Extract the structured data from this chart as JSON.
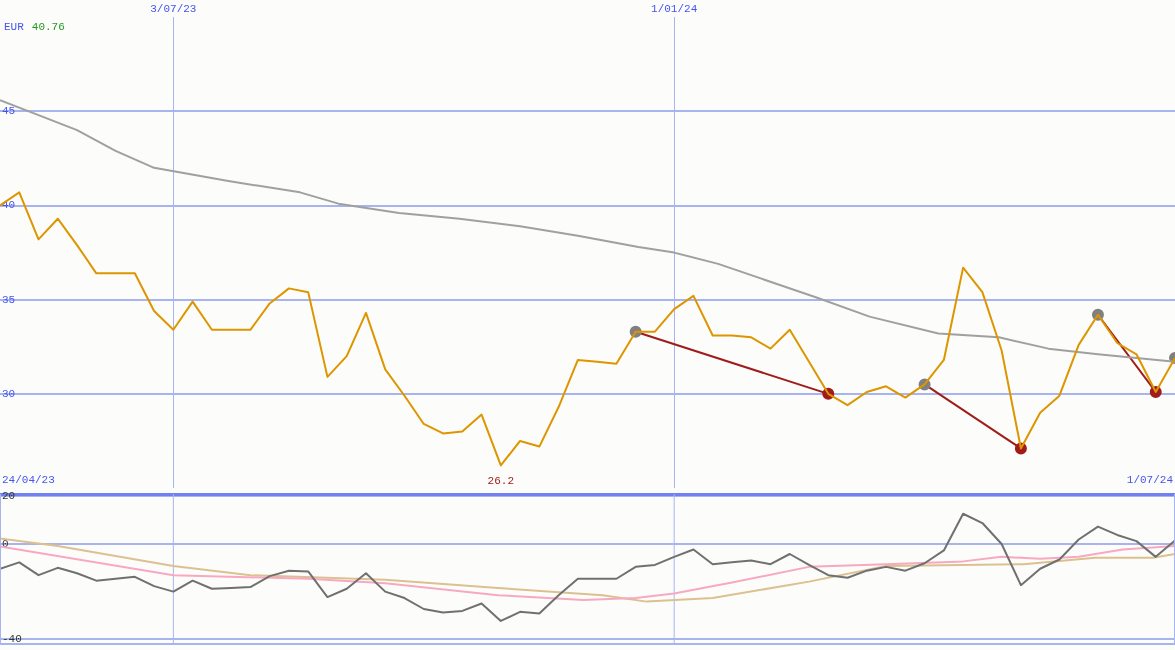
{
  "chart_data": [
    {
      "type": "line",
      "ylabel": "EUR",
      "subtitle": "40.76",
      "x": [
        "2023-05-01",
        "2023-05-08",
        "2023-05-15",
        "2023-05-22",
        "2023-05-29",
        "2023-06-05",
        "2023-06-12",
        "2023-06-19",
        "2023-06-26",
        "2023-07-03",
        "2023-07-10",
        "2023-07-17",
        "2023-07-24",
        "2023-07-31",
        "2023-08-07",
        "2023-08-14",
        "2023-08-21",
        "2023-08-28",
        "2023-09-04",
        "2023-09-11",
        "2023-09-18",
        "2023-09-25",
        "2023-10-02",
        "2023-10-09",
        "2023-10-16",
        "2023-10-23",
        "2023-10-30",
        "2023-11-06",
        "2023-11-13",
        "2023-11-20",
        "2023-11-27",
        "2023-12-04",
        "2023-12-11",
        "2023-12-18",
        "2023-12-25",
        "2024-01-01",
        "2024-01-08",
        "2024-01-15",
        "2024-01-22",
        "2024-01-29",
        "2024-02-05",
        "2024-02-12",
        "2024-02-19",
        "2024-02-26",
        "2024-03-04",
        "2024-03-11",
        "2024-03-18",
        "2024-03-25",
        "2024-04-01",
        "2024-04-08",
        "2024-04-15",
        "2024-04-22",
        "2024-04-29",
        "2024-05-06",
        "2024-05-13",
        "2024-05-20",
        "2024-05-27",
        "2024-06-03",
        "2024-06-10",
        "2024-06-17",
        "2024-06-24",
        "2024-07-01"
      ],
      "series": [
        {
          "color": "#dd9500",
          "values": [
            40.0,
            40.7,
            38.2,
            39.3,
            37.9,
            36.4,
            36.4,
            36.4,
            34.4,
            33.4,
            34.9,
            33.4,
            33.4,
            33.4,
            34.8,
            35.6,
            35.4,
            30.9,
            32.0,
            34.3,
            31.3,
            29.9,
            28.4,
            27.9,
            28.0,
            28.9,
            26.2,
            27.5,
            27.2,
            29.3,
            31.8,
            31.7,
            31.6,
            33.3,
            33.3,
            34.5,
            35.2,
            33.1,
            33.1,
            33.0,
            32.4,
            33.4,
            31.7,
            30.0,
            29.4,
            30.1,
            30.4,
            29.8,
            30.5,
            31.8,
            36.7,
            35.4,
            32.3,
            27.1,
            29.0,
            29.9,
            32.6,
            34.2,
            32.7,
            32.1,
            30.1,
            31.9
          ]
        },
        {
          "color": "#a0a0a0",
          "x": [
            "2023-05-01",
            "2023-05-15",
            "2023-05-29",
            "2023-06-12",
            "2023-06-26",
            "2023-07-23",
            "2023-08-18",
            "2023-09-01",
            "2023-09-23",
            "2023-10-15",
            "2023-11-06",
            "2023-11-27",
            "2023-12-19",
            "2024-01-01",
            "2024-01-17",
            "2024-02-06",
            "2024-02-22",
            "2024-03-12",
            "2024-04-06",
            "2024-04-28",
            "2024-05-16",
            "2024-06-03",
            "2024-07-01"
          ],
          "values": [
            45.6,
            44.8,
            44.0,
            42.9,
            42.0,
            41.3,
            40.7,
            40.1,
            39.6,
            39.3,
            38.9,
            38.4,
            37.8,
            37.5,
            36.9,
            35.9,
            35.1,
            34.1,
            33.2,
            33.0,
            32.4,
            32.1,
            31.7
          ]
        },
        {
          "color": "#a01c1c",
          "marker": "circle",
          "colors": [
            "#808080",
            "#a01c1c"
          ],
          "x": [
            "2023-12-18",
            "2024-02-26"
          ],
          "values": [
            33.3,
            30.0
          ]
        },
        {
          "color": "#a01c1c",
          "marker": "circle",
          "colors": [
            "#808080",
            "#a01c1c"
          ],
          "x": [
            "2024-04-01",
            "2024-05-06"
          ],
          "values": [
            30.5,
            27.1
          ]
        },
        {
          "color": "#a01c1c",
          "marker": "circle",
          "colors": [
            "#808080",
            "#a01c1c"
          ],
          "x": [
            "2024-06-03",
            "2024-06-24"
          ],
          "values": [
            34.2,
            30.1
          ]
        },
        {
          "type": "scatter",
          "color": "#808080",
          "marker": "circle",
          "x": [
            "2024-07-01"
          ],
          "values": [
            31.9
          ]
        }
      ],
      "marker": "none",
      "grid": true,
      "legend": false,
      "xlim": [
        "2023-05-01",
        "2024-07-01"
      ],
      "xticks": [
        {
          "value": "2023-07-03",
          "label": "3/07/23"
        },
        {
          "value": "2024-01-01",
          "label": "1/01/24"
        }
      ],
      "ylim": [
        25,
        50
      ],
      "yticks": [
        30,
        35,
        40,
        45
      ],
      "annotations": [
        {
          "text": "26.2",
          "x": "2023-10-30",
          "y": 26.2
        },
        "24/04/23",
        "1/07/24"
      ]
    },
    {
      "type": "line",
      "series": [
        {
          "color": "#707070",
          "values": [
            -10.4,
            -7.7,
            -13.1,
            -10.0,
            -12.3,
            -15.4,
            -14.6,
            -13.8,
            -17.7,
            -20.0,
            -15.4,
            -18.8,
            -18.5,
            -18.1,
            -13.5,
            -11.2,
            -11.5,
            -22.3,
            -18.8,
            -12.3,
            -20.0,
            -22.7,
            -27.3,
            -28.8,
            -28.1,
            -25.0,
            -32.3,
            -28.5,
            -29.2,
            -21.5,
            -14.6,
            -14.6,
            -14.6,
            -9.6,
            -8.8,
            -5.4,
            -2.3,
            -8.5,
            -7.7,
            -6.9,
            -8.5,
            -4.2,
            -8.8,
            -13.1,
            -14.2,
            -11.2,
            -9.6,
            -11.2,
            -8.1,
            -2.7,
            12.7,
            8.8,
            0,
            -17.3,
            -10.4,
            -6.5,
            1.9,
            7.3,
            3.8,
            1.2,
            -5.4,
            1.5
          ]
        },
        {
          "color": "#f8a8c0",
          "x": [
            "2023-05-01",
            "2023-07-03",
            "2023-08-21",
            "2023-09-18",
            "2023-10-29",
            "2023-11-29",
            "2023-12-18",
            "2024-01-01",
            "2024-01-22",
            "2024-02-19",
            "2024-03-18",
            "2024-04-15",
            "2024-04-29",
            "2024-05-13",
            "2024-05-27",
            "2024-06-12",
            "2024-07-01"
          ],
          "values": [
            -1.0,
            -13.1,
            -14.6,
            -16.5,
            -21.5,
            -23.5,
            -22.7,
            -20.8,
            -16.2,
            -9.6,
            -8.5,
            -7.3,
            -5.4,
            -6.2,
            -5.4,
            -2.3,
            -0.8
          ]
        },
        {
          "color": "#dcc090",
          "x": [
            "2023-05-01",
            "2023-05-22",
            "2023-07-03",
            "2023-07-31",
            "2023-09-18",
            "2023-10-29",
            "2023-12-06",
            "2023-12-22",
            "2024-01-15",
            "2024-02-19",
            "2024-03-18",
            "2024-05-07",
            "2024-06-02",
            "2024-06-23",
            "2024-07-01"
          ],
          "values": [
            2.3,
            -0.8,
            -9.2,
            -13.1,
            -15.0,
            -18.5,
            -21.5,
            -24.2,
            -22.7,
            -15.8,
            -9.2,
            -8.5,
            -5.8,
            -5.8,
            -4.2
          ]
        }
      ],
      "x": [
        "2023-05-01",
        "2023-05-08",
        "2023-05-15",
        "2023-05-22",
        "2023-05-29",
        "2023-06-05",
        "2023-06-12",
        "2023-06-19",
        "2023-06-26",
        "2023-07-03",
        "2023-07-10",
        "2023-07-17",
        "2023-07-24",
        "2023-07-31",
        "2023-08-07",
        "2023-08-14",
        "2023-08-21",
        "2023-08-28",
        "2023-09-04",
        "2023-09-11",
        "2023-09-18",
        "2023-09-25",
        "2023-10-02",
        "2023-10-09",
        "2023-10-16",
        "2023-10-23",
        "2023-10-30",
        "2023-11-06",
        "2023-11-13",
        "2023-11-20",
        "2023-11-27",
        "2023-12-04",
        "2023-12-11",
        "2023-12-18",
        "2023-12-25",
        "2024-01-01",
        "2024-01-08",
        "2024-01-15",
        "2024-01-22",
        "2024-01-29",
        "2024-02-05",
        "2024-02-12",
        "2024-02-19",
        "2024-02-26",
        "2024-03-04",
        "2024-03-11",
        "2024-03-18",
        "2024-03-25",
        "2024-04-01",
        "2024-04-08",
        "2024-04-15",
        "2024-04-22",
        "2024-04-29",
        "2024-05-06",
        "2024-05-13",
        "2024-05-20",
        "2024-05-27",
        "2024-06-03",
        "2024-06-10",
        "2024-06-17",
        "2024-06-24",
        "2024-07-01"
      ],
      "marker": "none",
      "grid": "y",
      "legend": false,
      "tick_labels": "y",
      "xlim": [
        "2023-05-01",
        "2024-07-01"
      ],
      "ref_lines": [
        {
          "axis": "x",
          "value": "2023-07-03",
          "color": "#a8b4f0"
        },
        {
          "axis": "x",
          "value": "2024-01-01",
          "color": "#a8b4f0"
        }
      ],
      "ylim": [
        -42,
        21
      ],
      "yticks": [
        20,
        0,
        -40
      ]
    }
  ]
}
